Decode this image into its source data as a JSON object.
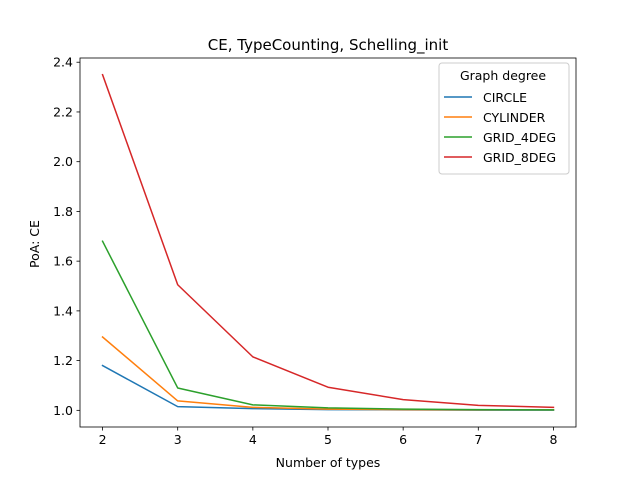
{
  "chart_data": {
    "type": "line",
    "title": "CE, TypeCounting, Schelling_init",
    "xlabel": "Number of types",
    "ylabel": "PoA: CE",
    "x": [
      2,
      3,
      4,
      5,
      6,
      7,
      8
    ],
    "xlim": [
      1.7,
      8.3
    ],
    "ylim": [
      0.933,
      2.417
    ],
    "xticks": [
      2,
      3,
      4,
      5,
      6,
      7,
      8
    ],
    "yticks": [
      1.0,
      1.2,
      1.4,
      1.6,
      1.8,
      2.0,
      2.2,
      2.4
    ],
    "ytick_labels": [
      "1.0",
      "1.2",
      "1.4",
      "1.6",
      "1.8",
      "2.0",
      "2.2",
      "2.4"
    ],
    "grid": false,
    "legend": {
      "title": "Graph degree",
      "placement": "top-right"
    },
    "series": [
      {
        "name": "CIRCLE",
        "color": "#1f77b4",
        "values": [
          1.18,
          1.015,
          1.007,
          1.003,
          1.002,
          1.001,
          1.001
        ]
      },
      {
        "name": "CYLINDER",
        "color": "#ff7f0e",
        "values": [
          1.295,
          1.038,
          1.012,
          1.005,
          1.003,
          1.002,
          1.002
        ]
      },
      {
        "name": "GRID_4DEG",
        "color": "#2ca02c",
        "values": [
          1.68,
          1.09,
          1.022,
          1.01,
          1.005,
          1.003,
          1.002
        ]
      },
      {
        "name": "GRID_8DEG",
        "color": "#d62728",
        "values": [
          2.35,
          1.505,
          1.215,
          1.093,
          1.043,
          1.02,
          1.012
        ]
      }
    ]
  }
}
